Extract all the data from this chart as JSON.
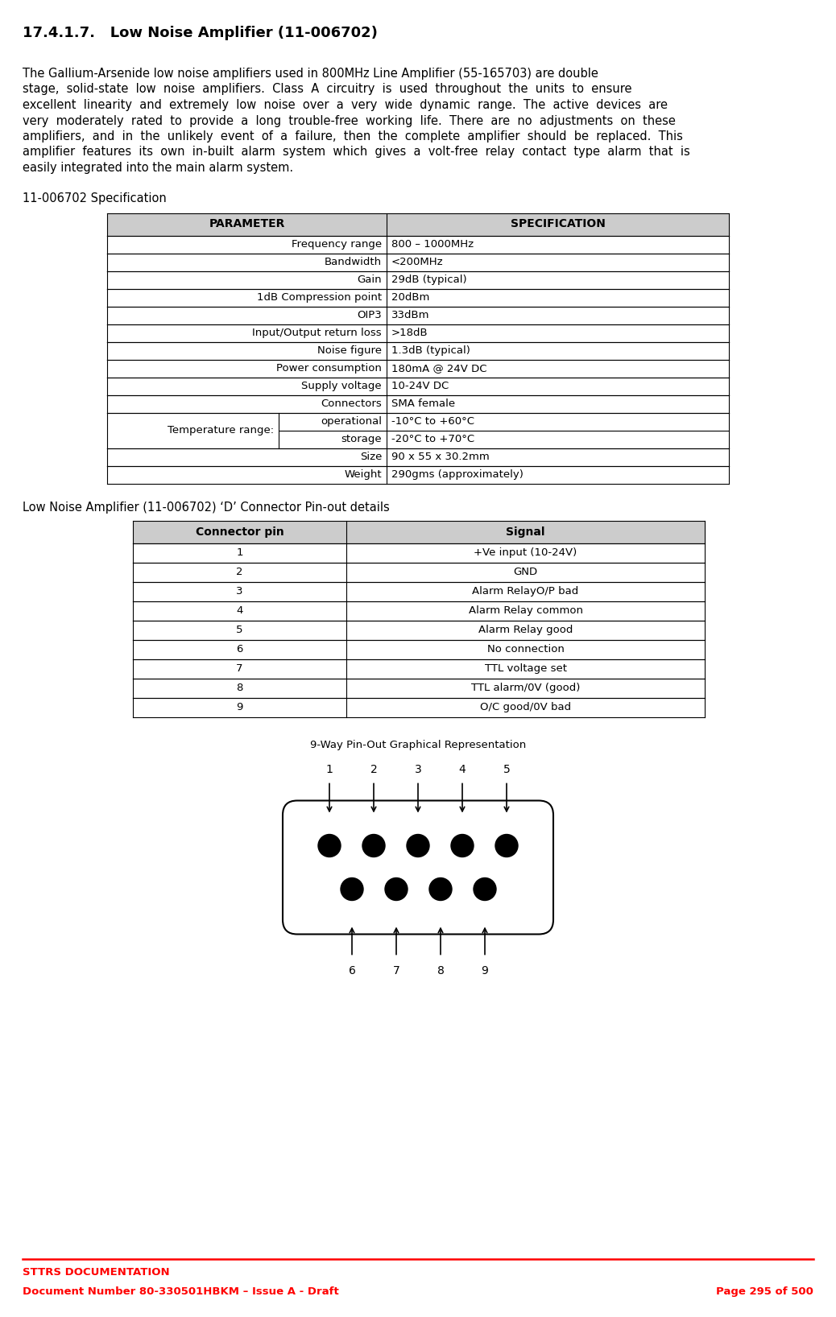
{
  "title": "17.4.1.7.   Low Noise Amplifier (11-006702)",
  "body_lines": [
    "The Gallium-Arsenide low noise amplifiers used in 800MHz Line Amplifier (55-165703) are double",
    "stage,  solid-state  low  noise  amplifiers.  Class  A  circuitry  is  used  throughout  the  units  to  ensure",
    "excellent  linearity  and  extremely  low  noise  over  a  very  wide  dynamic  range.  The  active  devices  are",
    "very  moderately  rated  to  provide  a  long  trouble-free  working  life.  There  are  no  adjustments  on  these",
    "amplifiers,  and  in  the  unlikely  event  of  a  failure,  then  the  complete  amplifier  should  be  replaced.  This",
    "amplifier  features  its  own  in-built  alarm  system  which  gives  a  volt-free  relay  contact  type  alarm  that  is",
    "easily integrated into the main alarm system."
  ],
  "spec_title": "11-006702 Specification",
  "spec_headers": [
    "PARAMETER",
    "SPECIFICATION"
  ],
  "spec_rows": [
    [
      "Frequency range",
      "800 – 1000MHz"
    ],
    [
      "Bandwidth",
      "<200MHz"
    ],
    [
      "Gain",
      "29dB (typical)"
    ],
    [
      "1dB Compression point",
      "20dBm"
    ],
    [
      "OIP3",
      "33dBm"
    ],
    [
      "Input/Output return loss",
      ">18dB"
    ],
    [
      "Noise figure",
      "1.3dB (typical)"
    ],
    [
      "Power consumption",
      "180mA @ 24V DC"
    ],
    [
      "Supply voltage",
      "10-24V DC"
    ],
    [
      "Connectors",
      "SMA female"
    ],
    [
      "Size",
      "90 x 55 x 30.2mm"
    ],
    [
      "Weight",
      "290gms (approximately)"
    ]
  ],
  "temp_rows": [
    [
      "operational",
      "-10°C to +60°C"
    ],
    [
      "storage",
      "-20°C to +70°C"
    ]
  ],
  "pinout_title": "Low Noise Amplifier (11-006702) ‘D’ Connector Pin-out details",
  "pinout_headers": [
    "Connector pin",
    "Signal"
  ],
  "pinout_rows": [
    [
      "1",
      "+Ve input (10-24V)"
    ],
    [
      "2",
      "GND"
    ],
    [
      "3",
      "Alarm RelayO/P bad"
    ],
    [
      "4",
      "Alarm Relay common"
    ],
    [
      "5",
      "Alarm Relay good"
    ],
    [
      "6",
      "No connection"
    ],
    [
      "7",
      "TTL voltage set"
    ],
    [
      "8",
      "TTL alarm/0V (good)"
    ],
    [
      "9",
      "O/C good/0V bad"
    ]
  ],
  "diagram_title": "9-Way Pin-Out Graphical Representation",
  "top_pins": [
    "1",
    "2",
    "3",
    "4",
    "5"
  ],
  "bottom_pins": [
    "6",
    "7",
    "8",
    "9"
  ],
  "footer_line1": "STTRS DOCUMENTATION",
  "footer_line2_left": "Document Number 80-330501HBKM – Issue A - Draft",
  "footer_line2_right": "Page 295 of 500",
  "header_bg": "#cccccc",
  "red_color": "#ff0000",
  "title_fontsize": 13,
  "body_fontsize": 10.5,
  "spec_title_fontsize": 10.5,
  "table_header_fontsize": 10,
  "table_body_fontsize": 9.5,
  "footer_fontsize": 9.5
}
